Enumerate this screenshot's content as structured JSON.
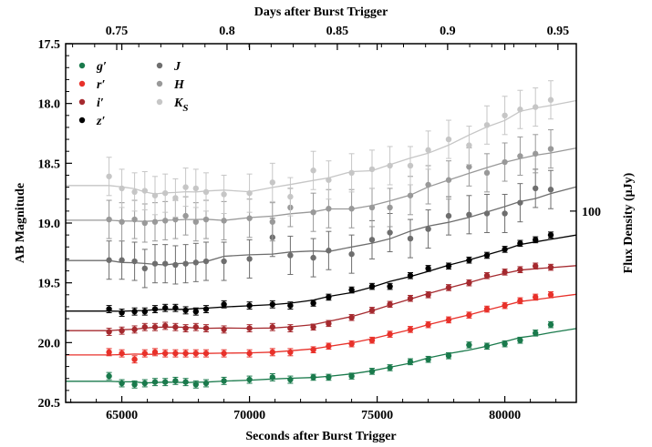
{
  "chart_data": {
    "type": "scatter",
    "xlabel": "Seconds after Burst Trigger",
    "ylabel": "AB Magnitude",
    "top_xlabel": "Days after Burst Trigger",
    "right_ylabel": "Flux Density (μJy)",
    "right_tick_label": "100",
    "right_tick_value_mag": 18.9,
    "xlim": [
      62800,
      82800
    ],
    "ylim": [
      20.5,
      17.5
    ],
    "y_inverted": true,
    "x_ticks": [
      65000,
      70000,
      75000,
      80000
    ],
    "x_tick_labels": [
      "65000",
      "70000",
      "75000",
      "80000"
    ],
    "y_ticks": [
      17.5,
      18.0,
      18.5,
      19.0,
      19.5,
      20.0,
      20.5
    ],
    "y_tick_labels": [
      "17.5",
      "18.0",
      "18.5",
      "19.0",
      "19.5",
      "20.0",
      "20.5"
    ],
    "top_x_ticks": [
      0.75,
      0.8,
      0.85,
      0.9,
      0.95
    ],
    "top_x_tick_labels": [
      "0.75",
      "0.8",
      "0.85",
      "0.9",
      "0.95"
    ],
    "legend_position": "top-left",
    "x": [
      64500,
      65000,
      65500,
      65900,
      66300,
      66700,
      67100,
      67500,
      67900,
      68300,
      69000,
      70000,
      70900,
      71600,
      72500,
      73100,
      74000,
      74800,
      75500,
      76300,
      77000,
      77800,
      78600,
      79300,
      80000,
      80600,
      81200,
      81800
    ],
    "series": [
      {
        "name": "g′",
        "color": "#1a7a4c",
        "values": [
          20.28,
          20.34,
          20.35,
          20.34,
          20.33,
          20.33,
          20.32,
          20.33,
          20.35,
          20.34,
          20.32,
          20.31,
          20.29,
          20.31,
          20.29,
          20.29,
          20.28,
          20.24,
          20.21,
          20.16,
          20.14,
          20.11,
          20.02,
          20.03,
          20.01,
          19.98,
          19.92,
          19.85
        ]
      },
      {
        "name": "r′",
        "color": "#e8312a",
        "values": [
          20.08,
          20.09,
          20.14,
          20.09,
          20.08,
          20.09,
          20.09,
          20.09,
          20.09,
          20.09,
          20.09,
          20.09,
          20.08,
          20.08,
          20.06,
          20.03,
          20.01,
          19.98,
          19.93,
          19.89,
          19.85,
          19.81,
          19.77,
          19.72,
          19.69,
          19.65,
          19.62,
          19.6
        ]
      },
      {
        "name": "i′",
        "color": "#a52a2f",
        "values": [
          19.91,
          19.9,
          19.89,
          19.87,
          19.87,
          19.86,
          19.87,
          19.88,
          19.87,
          19.88,
          19.89,
          19.88,
          19.87,
          19.88,
          19.87,
          19.84,
          19.79,
          19.73,
          19.68,
          19.63,
          19.6,
          19.54,
          19.5,
          19.44,
          19.41,
          19.39,
          19.36,
          19.37
        ]
      },
      {
        "name": "z′",
        "color": "#000000",
        "values": [
          19.72,
          19.75,
          19.74,
          19.74,
          19.72,
          19.71,
          19.71,
          19.73,
          19.74,
          19.72,
          19.68,
          19.69,
          19.68,
          19.69,
          19.67,
          19.62,
          19.56,
          19.53,
          19.53,
          19.44,
          19.38,
          19.36,
          19.31,
          19.27,
          19.22,
          19.17,
          19.14,
          19.1
        ]
      },
      {
        "name": "J",
        "color": "#6e6e6e",
        "values": [
          19.31,
          19.31,
          19.32,
          19.38,
          19.34,
          19.34,
          19.35,
          19.34,
          19.33,
          19.32,
          19.32,
          19.3,
          19.12,
          19.27,
          19.29,
          19.23,
          19.26,
          19.14,
          19.08,
          19.13,
          19.05,
          18.94,
          18.93,
          18.92,
          18.92,
          18.83,
          18.71,
          18.72
        ]
      },
      {
        "name": "H",
        "color": "#999999",
        "values": [
          18.97,
          18.99,
          18.97,
          19.0,
          18.99,
          18.98,
          18.97,
          18.94,
          18.99,
          18.97,
          18.98,
          18.96,
          18.99,
          18.87,
          18.91,
          18.88,
          18.88,
          18.87,
          18.87,
          18.77,
          18.68,
          18.64,
          18.53,
          18.58,
          18.49,
          18.44,
          18.42,
          18.38
        ]
      },
      {
        "name": "K_S",
        "color": "#c6c6c6",
        "values": [
          18.61,
          18.71,
          18.74,
          18.73,
          18.77,
          18.75,
          18.79,
          18.7,
          18.71,
          18.74,
          18.76,
          18.75,
          18.66,
          18.78,
          18.56,
          18.64,
          18.58,
          18.55,
          18.52,
          18.52,
          18.39,
          18.3,
          18.35,
          18.18,
          18.1,
          18.05,
          18.03,
          17.97
        ]
      }
    ]
  }
}
